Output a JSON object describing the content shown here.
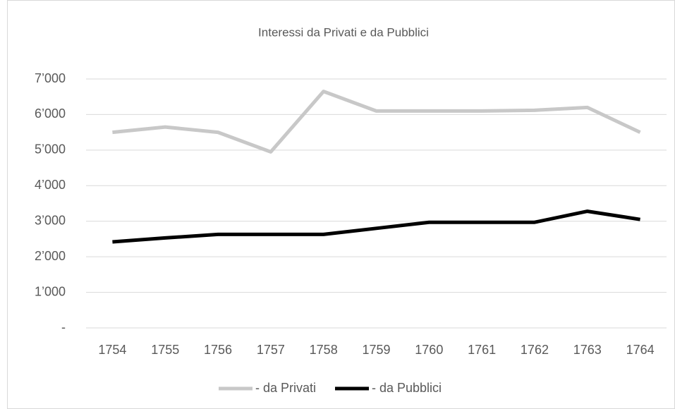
{
  "chart_data": {
    "type": "line",
    "title": "Interessi da Privati e da Pubblici",
    "categories": [
      "1754",
      "1755",
      "1756",
      "1757",
      "1758",
      "1759",
      "1760",
      "1761",
      "1762",
      "1763",
      "1764"
    ],
    "series": [
      {
        "name": "- da Privati",
        "color": "#c8c8c8",
        "values": [
          5500,
          5650,
          5500,
          4950,
          6650,
          6100,
          6100,
          6100,
          6120,
          6200,
          5500
        ]
      },
      {
        "name": "- da Pubblici",
        "color": "#000000",
        "values": [
          2420,
          2530,
          2630,
          2630,
          2630,
          2800,
          2970,
          2970,
          2970,
          3280,
          3050
        ]
      }
    ],
    "ylim": [
      0,
      7000
    ],
    "yticks": [
      {
        "value": 0,
        "label": "-"
      },
      {
        "value": 1000,
        "label": "1’000"
      },
      {
        "value": 2000,
        "label": "2’000"
      },
      {
        "value": 3000,
        "label": "3’000"
      },
      {
        "value": 4000,
        "label": "4’000"
      },
      {
        "value": 5000,
        "label": "5’000"
      },
      {
        "value": 6000,
        "label": "6’000"
      },
      {
        "value": 7000,
        "label": "7’000"
      }
    ],
    "grid": true,
    "legend": "bottom"
  }
}
